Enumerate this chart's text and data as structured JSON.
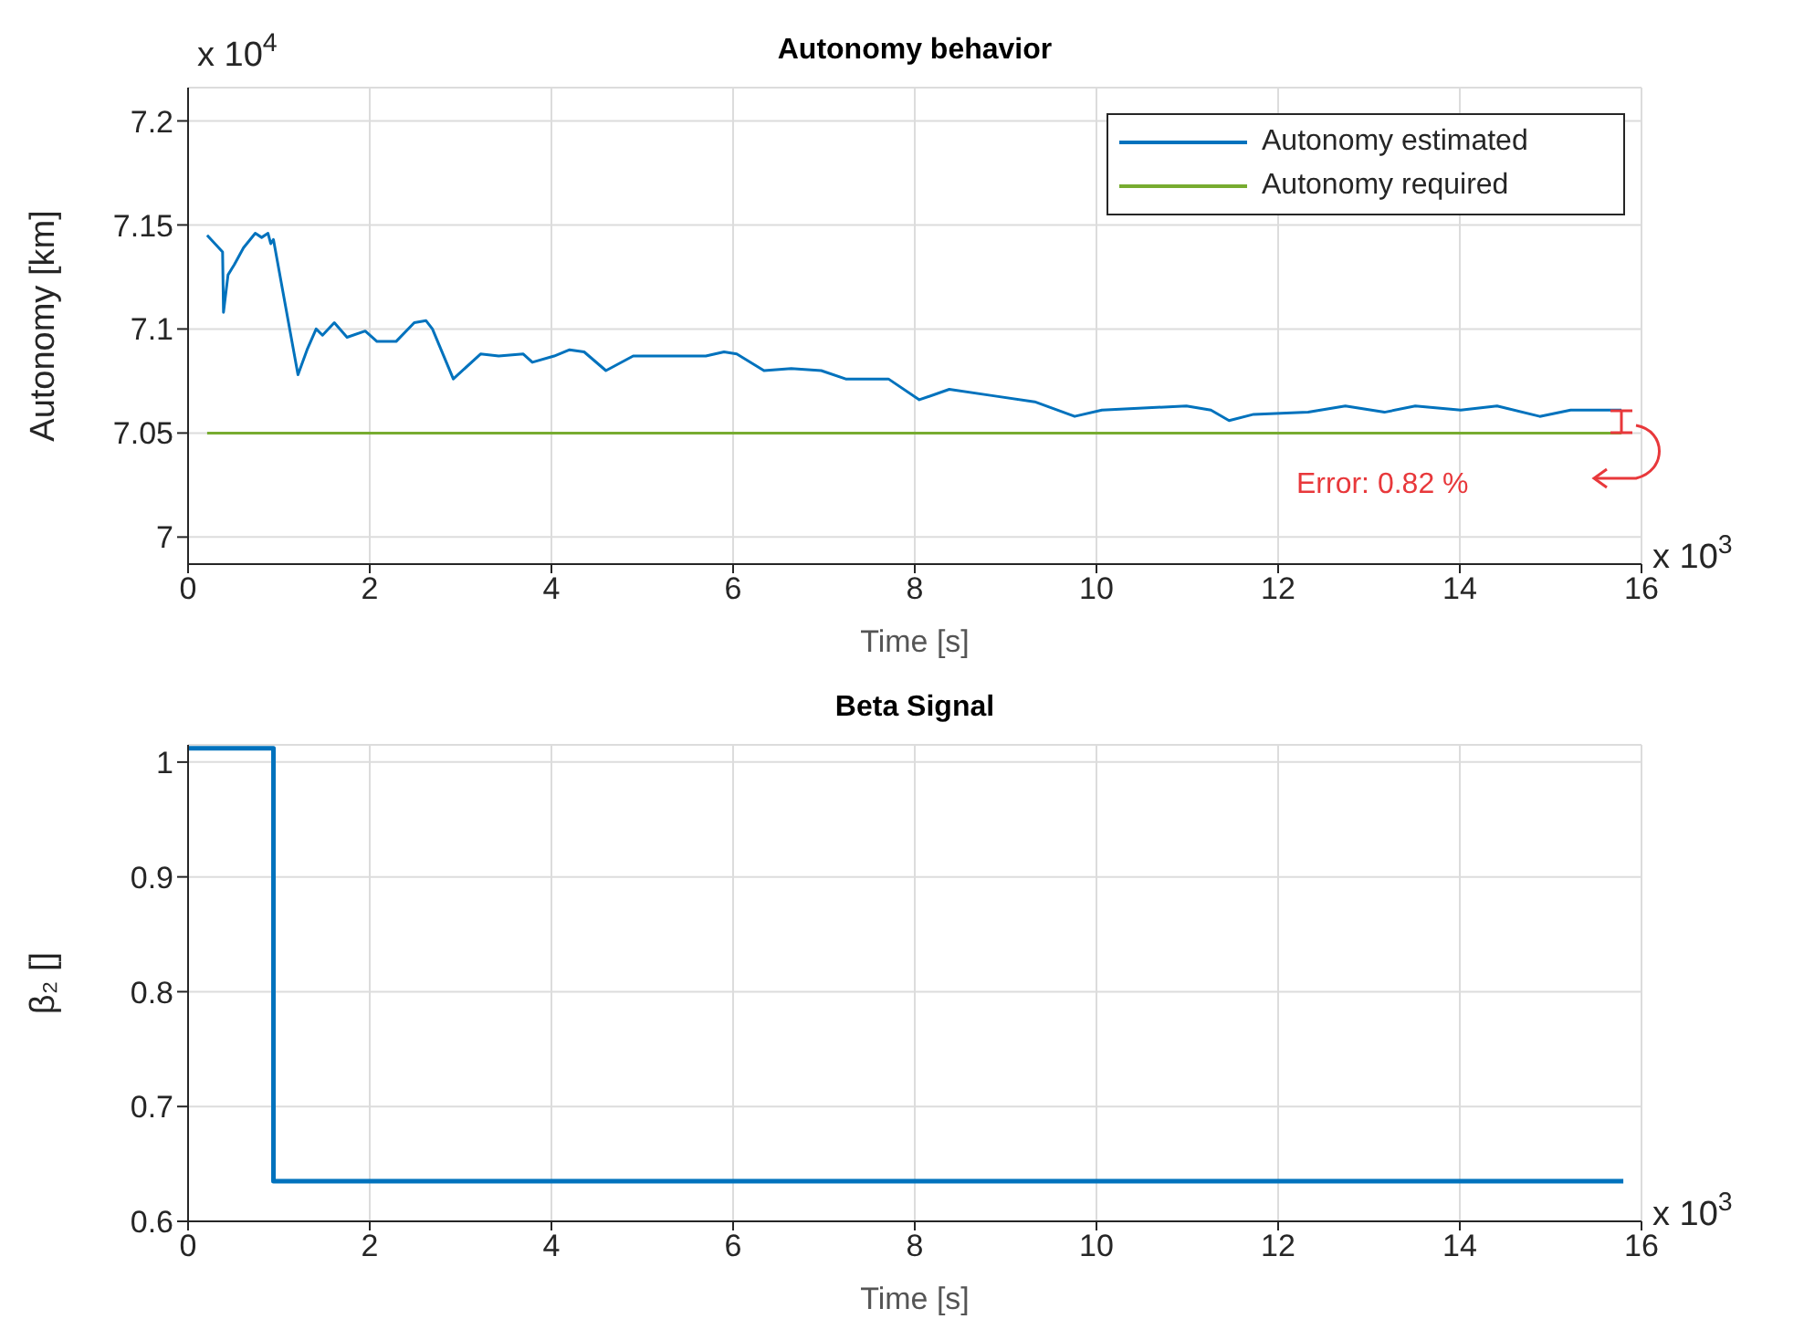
{
  "chart_data": [
    {
      "type": "line",
      "title": "Autonomy behavior",
      "xlabel": "Time [s]",
      "ylabel": "Autonomy [km]",
      "xlim": [
        0,
        16
      ],
      "xticks": [
        0,
        2,
        4,
        6,
        8,
        10,
        12,
        14,
        16
      ],
      "ylim": [
        6.987,
        7.216
      ],
      "yticks": [
        7,
        7.05,
        7.1,
        7.15,
        7.2
      ],
      "grid": true,
      "legend": "top right",
      "marker": "none",
      "annotations": [
        "x 10$^{4}$",
        "x 10$^{3}$",
        "Error: 0.82 %"
      ],
      "series": [
        {
          "name": "Autonomy estimated",
          "color": "#0072bd",
          "x": [
            0.21,
            0.38,
            0.39,
            0.44,
            0.51,
            0.61,
            0.74,
            0.81,
            0.88,
            0.91,
            0.94,
            1.21,
            1.31,
            1.41,
            1.48,
            1.61,
            1.75,
            1.95,
            2.08,
            2.29,
            2.49,
            2.62,
            2.69,
            2.92,
            3.22,
            3.42,
            3.69,
            3.79,
            4.03,
            4.2,
            4.36,
            4.6,
            4.9,
            5.3,
            5.7,
            5.9,
            6.04,
            6.34,
            6.64,
            6.97,
            7.24,
            7.71,
            8.05,
            8.38,
            8.85,
            9.32,
            9.76,
            10.06,
            10.99,
            11.26,
            11.46,
            11.73,
            12.33,
            12.74,
            13.17,
            13.51,
            14.01,
            14.41,
            14.88,
            15.22,
            15.62,
            15.78
          ],
          "values": [
            7.145,
            7.137,
            7.108,
            7.126,
            7.131,
            7.139,
            7.146,
            7.144,
            7.146,
            7.141,
            7.143,
            7.078,
            7.09,
            7.1,
            7.097,
            7.103,
            7.096,
            7.099,
            7.094,
            7.094,
            7.103,
            7.104,
            7.1,
            7.076,
            7.088,
            7.087,
            7.088,
            7.084,
            7.087,
            7.09,
            7.089,
            7.08,
            7.087,
            7.087,
            7.087,
            7.089,
            7.088,
            7.08,
            7.081,
            7.08,
            7.076,
            7.076,
            7.066,
            7.071,
            7.068,
            7.065,
            7.058,
            7.061,
            7.063,
            7.061,
            7.056,
            7.059,
            7.06,
            7.063,
            7.06,
            7.063,
            7.061,
            7.063,
            7.058,
            7.061,
            7.061,
            7.061
          ]
        },
        {
          "name": "Autonomy required",
          "color": "#77ac30",
          "x": [
            0.21,
            15.78
          ],
          "values": [
            7.05,
            7.05
          ]
        }
      ]
    },
    {
      "type": "step",
      "title": "Beta Signal",
      "xlabel": "Time [s]",
      "ylabel": "β₂ []",
      "xlim": [
        0,
        16
      ],
      "xticks": [
        0,
        2,
        4,
        6,
        8,
        10,
        12,
        14,
        16
      ],
      "ylim": [
        0.6,
        1.015
      ],
      "yticks": [
        0.6,
        0.7,
        0.8,
        0.9,
        1
      ],
      "grid": true,
      "marker": "none",
      "annotations": [
        "x 10$^{3}$"
      ],
      "series": [
        {
          "color": "#0072bd",
          "x": [
            0,
            0.94,
            15.8
          ],
          "values": [
            1.012,
            0.635,
            0.635
          ]
        }
      ]
    }
  ]
}
